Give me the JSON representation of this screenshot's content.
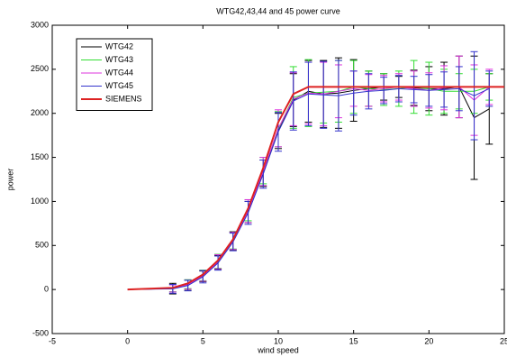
{
  "chart_data": {
    "type": "line",
    "title": "WTG42,43,44 and 45 power curve",
    "x_label": "wind speed",
    "y_label": "power",
    "xlim": [
      -5,
      25
    ],
    "ylim": [
      -500,
      3000
    ],
    "xticks": [
      -5,
      0,
      5,
      10,
      15,
      20,
      25
    ],
    "yticks": [
      -500,
      0,
      500,
      1000,
      1500,
      2000,
      2500,
      3000
    ],
    "legend": "upper left",
    "x": [
      0,
      3,
      4,
      5,
      6,
      7,
      8,
      9,
      10,
      11,
      12,
      13,
      14,
      15,
      16,
      17,
      18,
      19,
      20,
      21,
      22,
      23,
      24
    ],
    "series": [
      {
        "name": "WTG42",
        "color": "#000000",
        "values": [
          0,
          10,
          50,
          150,
          310,
          550,
          880,
          1320,
          1800,
          2150,
          2250,
          2220,
          2230,
          2260,
          2280,
          2300,
          2300,
          2290,
          2280,
          2280,
          2300,
          1950,
          2050
        ],
        "errors": [
          0,
          60,
          60,
          60,
          80,
          100,
          120,
          150,
          200,
          300,
          350,
          380,
          400,
          350,
          200,
          150,
          120,
          200,
          250,
          300,
          350,
          700,
          400
        ]
      },
      {
        "name": "WTG43",
        "color": "#33dd33",
        "values": [
          0,
          15,
          60,
          160,
          320,
          560,
          900,
          1350,
          1820,
          2180,
          2230,
          2240,
          2250,
          2300,
          2280,
          2270,
          2280,
          2300,
          2280,
          2250,
          2250,
          2250,
          2300
        ],
        "errors": [
          0,
          40,
          50,
          60,
          80,
          100,
          120,
          150,
          200,
          350,
          380,
          350,
          350,
          300,
          200,
          180,
          200,
          300,
          300,
          250,
          200,
          250,
          150
        ]
      },
      {
        "name": "WTG44",
        "color": "#dd33dd",
        "values": [
          0,
          12,
          55,
          155,
          315,
          555,
          890,
          1340,
          1830,
          2160,
          2230,
          2220,
          2250,
          2280,
          2260,
          2280,
          2300,
          2280,
          2260,
          2290,
          2300,
          2150,
          2300
        ],
        "errors": [
          0,
          40,
          50,
          60,
          80,
          100,
          130,
          160,
          210,
          300,
          350,
          360,
          300,
          200,
          180,
          150,
          150,
          200,
          200,
          250,
          350,
          400,
          200
        ]
      },
      {
        "name": "WTG45",
        "color": "#3333cc",
        "values": [
          0,
          8,
          45,
          145,
          300,
          540,
          870,
          1310,
          1790,
          2140,
          2220,
          2210,
          2200,
          2230,
          2250,
          2260,
          2280,
          2270,
          2260,
          2270,
          2280,
          2200,
          2280
        ],
        "errors": [
          0,
          50,
          60,
          70,
          80,
          100,
          130,
          160,
          220,
          330,
          360,
          380,
          400,
          250,
          200,
          150,
          150,
          150,
          180,
          200,
          250,
          500,
          200
        ]
      },
      {
        "name": "SIEMENS",
        "color": "#dd2222",
        "width": 2,
        "x": [
          0,
          3,
          4,
          5,
          6,
          7,
          8,
          9,
          10,
          11,
          12,
          13,
          25
        ],
        "values": [
          0,
          20,
          70,
          170,
          330,
          570,
          920,
          1380,
          1900,
          2220,
          2300,
          2300,
          2300
        ]
      }
    ]
  }
}
